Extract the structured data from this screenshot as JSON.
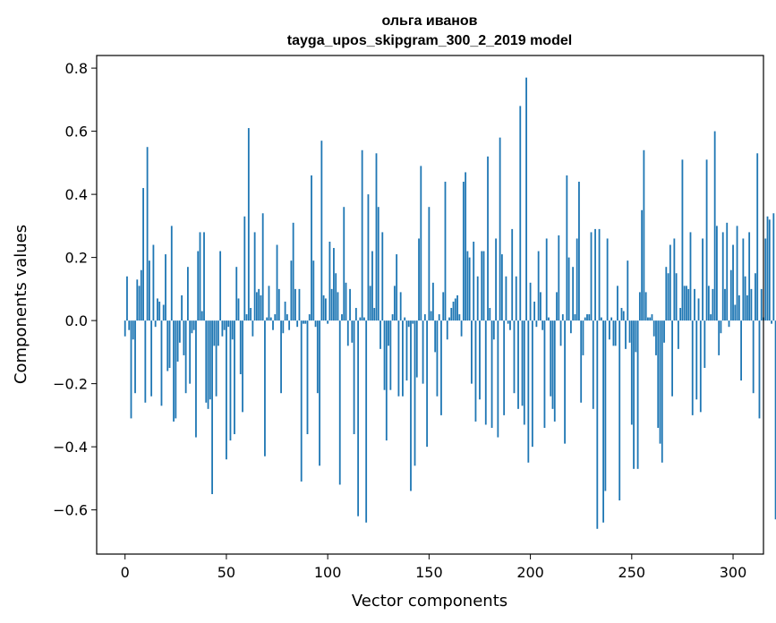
{
  "chart_data": {
    "type": "bar",
    "title_line1": "ольга иванов",
    "title_line2": "tayga_upos_skipgram_300_2_2019 model",
    "xlabel": "Vector components",
    "ylabel": "Components values",
    "xlim": [
      -14,
      315
    ],
    "ylim": [
      -0.74,
      0.84
    ],
    "xticks": [
      0,
      50,
      100,
      150,
      200,
      250,
      300
    ],
    "yticks": [
      -0.6,
      -0.4,
      -0.2,
      0.0,
      0.2,
      0.4,
      0.6,
      0.8
    ],
    "ytick_labels": [
      "−0.6",
      "−0.4",
      "−0.2",
      "0.0",
      "0.2",
      "0.4",
      "0.6",
      "0.8"
    ],
    "xtick_labels": [
      "0",
      "50",
      "100",
      "150",
      "200",
      "250",
      "300"
    ],
    "color": "#1f77b4",
    "values": [
      -0.05,
      0.14,
      -0.03,
      -0.31,
      -0.06,
      -0.23,
      0.13,
      0.11,
      0.16,
      0.42,
      -0.26,
      0.55,
      0.19,
      -0.24,
      0.24,
      -0.02,
      0.07,
      0.06,
      -0.27,
      0.05,
      0.21,
      -0.16,
      -0.15,
      0.3,
      -0.32,
      -0.31,
      -0.13,
      -0.07,
      0.08,
      -0.11,
      -0.23,
      0.17,
      -0.2,
      -0.04,
      -0.03,
      -0.37,
      0.22,
      0.28,
      0.03,
      0.28,
      -0.26,
      -0.28,
      -0.25,
      -0.55,
      -0.08,
      -0.24,
      -0.08,
      0.22,
      -0.05,
      -0.03,
      -0.44,
      -0.02,
      -0.38,
      -0.06,
      -0.36,
      0.17,
      0.07,
      -0.17,
      -0.29,
      0.33,
      0.02,
      0.61,
      0.04,
      -0.05,
      0.28,
      0.09,
      0.1,
      0.08,
      0.34,
      -0.43,
      0.01,
      0.11,
      0.01,
      -0.03,
      0.02,
      0.24,
      0.1,
      -0.23,
      -0.04,
      0.06,
      0.02,
      -0.03,
      0.19,
      0.31,
      0.1,
      -0.02,
      0.1,
      -0.51,
      -0.01,
      -0.01,
      -0.36,
      0.02,
      0.46,
      0.19,
      -0.02,
      -0.23,
      -0.46,
      0.57,
      0.08,
      0.07,
      -0.01,
      0.25,
      0.1,
      0.23,
      0.15,
      0.09,
      -0.52,
      0.02,
      0.36,
      0.12,
      -0.08,
      0.1,
      -0.07,
      -0.36,
      0.04,
      -0.62,
      0.01,
      0.54,
      0.01,
      -0.64,
      0.4,
      0.11,
      0.22,
      0.04,
      0.53,
      0.36,
      -0.09,
      0.28,
      -0.22,
      -0.38,
      -0.08,
      -0.22,
      0.02,
      0.11,
      0.21,
      -0.24,
      0.09,
      -0.24,
      0.01,
      -0.19,
      -0.02,
      -0.54,
      -0.01,
      -0.46,
      -0.18,
      0.26,
      0.49,
      -0.2,
      0.02,
      -0.4,
      0.36,
      0.03,
      0.12,
      -0.1,
      -0.24,
      0.02,
      -0.3,
      0.09,
      0.44,
      -0.06,
      0.01,
      0.04,
      0.06,
      0.07,
      0.08,
      0.02,
      -0.05,
      0.44,
      0.47,
      0.22,
      0.2,
      -0.2,
      0.25,
      -0.32,
      0.14,
      -0.25,
      0.22,
      0.22,
      -0.33,
      0.52,
      0.04,
      -0.34,
      -0.06,
      0.26,
      -0.37,
      0.58,
      0.21,
      -0.3,
      0.14,
      -0.01,
      -0.03,
      0.29,
      -0.23,
      0.14,
      -0.28,
      0.68,
      -0.27,
      -0.33,
      0.77,
      -0.45,
      0.12,
      -0.4,
      0.06,
      -0.02,
      0.22,
      0.09,
      -0.03,
      -0.34,
      0.26,
      0.01,
      -0.24,
      -0.28,
      -0.32,
      0.09,
      0.27,
      -0.08,
      0.02,
      -0.39,
      0.46,
      0.2,
      -0.04,
      0.17,
      0.02,
      0.26,
      0.44,
      -0.26,
      -0.11,
      0.01,
      0.02,
      0.02,
      0.28,
      -0.28,
      0.29,
      -0.66,
      0.29,
      0.01,
      -0.64,
      -0.54,
      0.26,
      -0.06,
      0.01,
      -0.08,
      -0.08,
      0.11,
      -0.57,
      0.04,
      0.03,
      -0.09,
      0.19,
      -0.07,
      -0.33,
      -0.47,
      -0.1,
      -0.47,
      0.09,
      0.35,
      0.54,
      0.09,
      0.01,
      0.01,
      0.02,
      -0.05,
      -0.11,
      -0.34,
      -0.39,
      -0.45,
      -0.07,
      0.17,
      0.15,
      0.24,
      -0.24,
      0.26,
      0.15,
      -0.09,
      0.04,
      0.51,
      0.11,
      0.11,
      0.1,
      0.28,
      -0.3,
      0.1,
      -0.25,
      0.07,
      -0.29,
      0.26,
      -0.15,
      0.51,
      0.11,
      0.02,
      0.1,
      0.6,
      0.3,
      -0.11,
      -0.04,
      0.28,
      0.1,
      0.31,
      -0.02,
      0.16,
      0.24,
      0.05,
      0.3,
      0.08,
      -0.19,
      0.26,
      0.14,
      0.08,
      0.28,
      0.1,
      -0.23,
      0.15,
      0.53,
      -0.31,
      0.1,
      0.01,
      0.26,
      0.33,
      0.32,
      -0.01,
      0.34,
      -0.63
    ]
  }
}
